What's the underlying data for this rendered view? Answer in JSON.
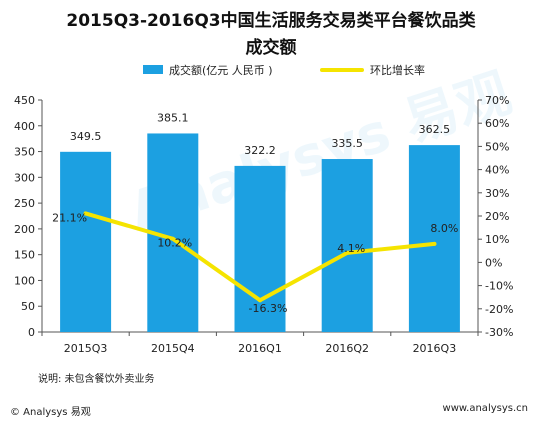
{
  "chart_data": {
    "type": "bar",
    "title": "2015Q3-2016Q3中国生活服务交易类平台餐饮品类",
    "subtitle": "成交额",
    "categories": [
      "2015Q3",
      "2015Q4",
      "2016Q1",
      "2016Q2",
      "2016Q3"
    ],
    "series": [
      {
        "name": "成交额(亿元 人民币 )",
        "type": "bar",
        "axis": "left",
        "values": [
          349.5,
          385.1,
          322.2,
          335.5,
          362.5
        ],
        "labels": [
          "349.5",
          "385.1",
          "322.2",
          "335.5",
          "362.5"
        ]
      },
      {
        "name": "环比增长率",
        "type": "line",
        "axis": "right",
        "values": [
          21.1,
          10.2,
          -16.3,
          4.1,
          8.0
        ],
        "labels": [
          "21.1%",
          "10.2%",
          "-16.3%",
          "4.1%",
          "8.0%"
        ]
      }
    ],
    "ylim_left": [
      0,
      450
    ],
    "yticks_left": [
      "0",
      "50",
      "100",
      "150",
      "200",
      "250",
      "300",
      "350",
      "400",
      "450"
    ],
    "ylim_right": [
      -30,
      70
    ],
    "yticks_right": [
      "-30%",
      "-20%",
      "-10%",
      "0%",
      "10%",
      "20%",
      "30%",
      "40%",
      "50%",
      "60%",
      "70%"
    ],
    "grid": false,
    "legend_position": "top-center",
    "colors": {
      "bar": "#1ca0e1",
      "line": "#f5e400"
    }
  },
  "note": "说明: 未包含餐饮外卖业务",
  "footer": {
    "left": "© Analysys 易观",
    "right": "www.analysys.cn"
  },
  "watermark": "Analysys 易观"
}
